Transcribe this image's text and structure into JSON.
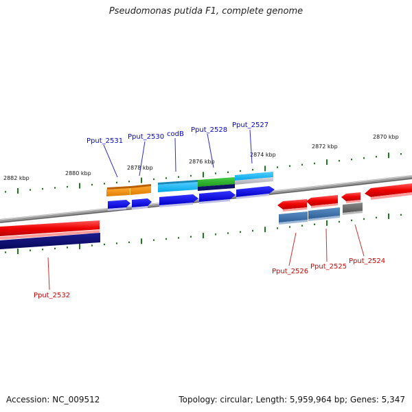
{
  "title": "Pseudomonas putida F1, complete genome",
  "footer": {
    "accession": "Accession: NC_009512",
    "summary": "Topology: circular; Length: 5,959,964 bp; Genes: 5,347"
  },
  "colors": {
    "forward_label": "#0000cc",
    "reverse_label": "#cc0000",
    "tick": "#1a7a1a",
    "backbone": "#777777"
  },
  "tick_labels": [
    "2882 kbp",
    "2880 kbp",
    "2878 kbp",
    "2876 kbp",
    "2874 kbp",
    "2872 kbp",
    "2870 kbp"
  ],
  "forward_genes": [
    "Pput_2531",
    "Pput_2530",
    "codB",
    "Pput_2528",
    "Pput_2527"
  ],
  "reverse_genes": [
    "Pput_2532",
    "Pput_2526",
    "Pput_2525",
    "Pput_2524"
  ]
}
